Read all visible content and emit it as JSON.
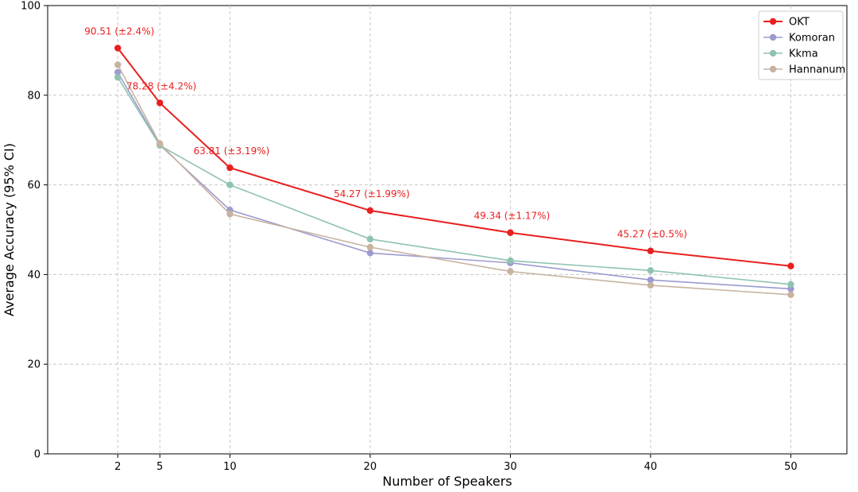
{
  "chart_data": {
    "type": "line",
    "title": "",
    "xlabel": "Number of Speakers",
    "ylabel": "Average Accuracy (95% CI)",
    "x": [
      2,
      5,
      10,
      20,
      30,
      40,
      50
    ],
    "x_ticks": [
      "2",
      "5",
      "10",
      "20",
      "30",
      "40",
      "50"
    ],
    "xlim": [
      -3,
      54
    ],
    "ylim": [
      0,
      100
    ],
    "y_ticks": [
      "0",
      "20",
      "40",
      "60",
      "80",
      "100"
    ],
    "grid": true,
    "legend_position": "top-right",
    "series": [
      {
        "name": "OKT",
        "color": "#e8201f",
        "values": [
          90.51,
          78.28,
          63.81,
          54.27,
          49.34,
          45.27,
          41.9
        ]
      },
      {
        "name": "Komoran",
        "color": "#9b9bd0",
        "values": [
          85.1,
          68.9,
          54.4,
          44.8,
          42.6,
          38.8,
          36.8
        ]
      },
      {
        "name": "Kkma",
        "color": "#8fc3b1",
        "values": [
          84.0,
          68.8,
          60.0,
          47.9,
          43.1,
          40.9,
          37.8
        ]
      },
      {
        "name": "Hannanum",
        "color": "#c8b3a0",
        "values": [
          86.8,
          69.2,
          53.5,
          46.1,
          40.7,
          37.6,
          35.5
        ]
      }
    ],
    "annotations": [
      {
        "series": "OKT",
        "x": 2,
        "text": "90.51 (±2.4%)"
      },
      {
        "series": "OKT",
        "x": 5,
        "text": "78.28 (±4.2%)"
      },
      {
        "series": "OKT",
        "x": 10,
        "text": "63.81 (±3.19%)"
      },
      {
        "series": "OKT",
        "x": 20,
        "text": "54.27 (±1.99%)"
      },
      {
        "series": "OKT",
        "x": 30,
        "text": "49.34 (±1.17%)"
      },
      {
        "series": "OKT",
        "x": 40,
        "text": "45.27 (±0.5%)"
      }
    ]
  }
}
